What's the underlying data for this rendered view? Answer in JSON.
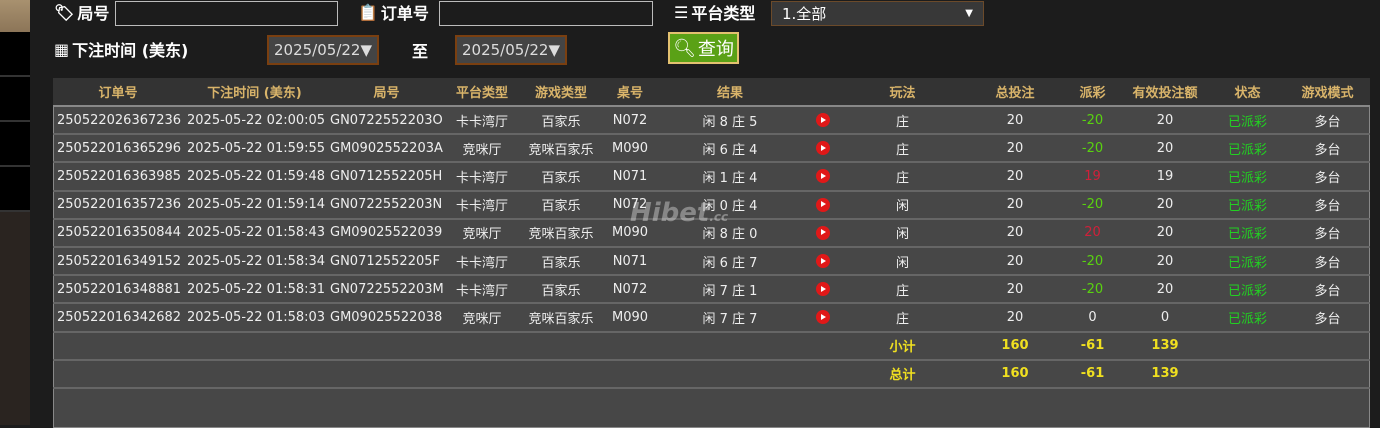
{
  "filters": {
    "round_label": "局号",
    "round_value": "",
    "order_label": "订单号",
    "order_value": "",
    "platform_label": "平台类型",
    "platform_value": "1.全部",
    "time_label": "下注时间 (美东)",
    "date_from": "2025/05/22▼",
    "to_label": "至",
    "date_to": "2025/05/22▼",
    "query_label": "查询"
  },
  "table": {
    "headers": [
      "订单号",
      "下注时间 (美东)",
      "局号",
      "平台类型",
      "游戏类型",
      "桌号",
      "结果",
      "",
      "玩法",
      "总投注",
      "派彩",
      "有效投注额",
      "状态",
      "游戏模式"
    ],
    "rows": [
      [
        "250522026367236",
        "2025-05-22 02:00:05",
        "GN0722552203O",
        "卡卡湾厅",
        "百家乐",
        "N072",
        "闲 8 庄 5",
        "",
        "庄",
        "20",
        "-20",
        "20",
        "已派彩",
        "多台"
      ],
      [
        "250522016365296",
        "2025-05-22 01:59:55",
        "GM0902552203A",
        "竞咪厅",
        "竞咪百家乐",
        "M090",
        "闲 6 庄 4",
        "",
        "庄",
        "20",
        "-20",
        "20",
        "已派彩",
        "多台"
      ],
      [
        "250522016363985",
        "2025-05-22 01:59:48",
        "GN0712552205H",
        "卡卡湾厅",
        "百家乐",
        "N071",
        "闲 1 庄 4",
        "",
        "庄",
        "20",
        "19",
        "19",
        "已派彩",
        "多台"
      ],
      [
        "250522016357236",
        "2025-05-22 01:59:14",
        "GN0722552203N",
        "卡卡湾厅",
        "百家乐",
        "N072",
        "闲 0 庄 4",
        "",
        "闲",
        "20",
        "-20",
        "20",
        "已派彩",
        "多台"
      ],
      [
        "250522016350844",
        "2025-05-22 01:58:43",
        "GM09025522039",
        "竞咪厅",
        "竞咪百家乐",
        "M090",
        "闲 8 庄 0",
        "",
        "闲",
        "20",
        "20",
        "20",
        "已派彩",
        "多台"
      ],
      [
        "250522016349152",
        "2025-05-22 01:58:34",
        "GN0712552205F",
        "卡卡湾厅",
        "百家乐",
        "N071",
        "闲 6 庄 7",
        "",
        "闲",
        "20",
        "-20",
        "20",
        "已派彩",
        "多台"
      ],
      [
        "250522016348881",
        "2025-05-22 01:58:31",
        "GN0722552203M",
        "卡卡湾厅",
        "百家乐",
        "N072",
        "闲 7 庄 1",
        "",
        "庄",
        "20",
        "-20",
        "20",
        "已派彩",
        "多台"
      ],
      [
        "250522016342682",
        "2025-05-22 01:58:03",
        "GM09025522038",
        "竞咪厅",
        "竞咪百家乐",
        "M090",
        "闲 7 庄 7",
        "",
        "庄",
        "20",
        "0",
        "0",
        "已派彩",
        "多台"
      ]
    ],
    "subtotal": {
      "label": "小计",
      "total_bet": "160",
      "payout": "-61",
      "valid_bet": "139"
    },
    "total": {
      "label": "总计",
      "total_bet": "160",
      "payout": "-61",
      "valid_bet": "139"
    }
  },
  "watermark": "Hibet.cc",
  "colors": {
    "win": "#59d30f",
    "loss": "#d0203a",
    "status": "#22d022",
    "totals": "#f0e020",
    "header_text": "#d9b46a"
  }
}
